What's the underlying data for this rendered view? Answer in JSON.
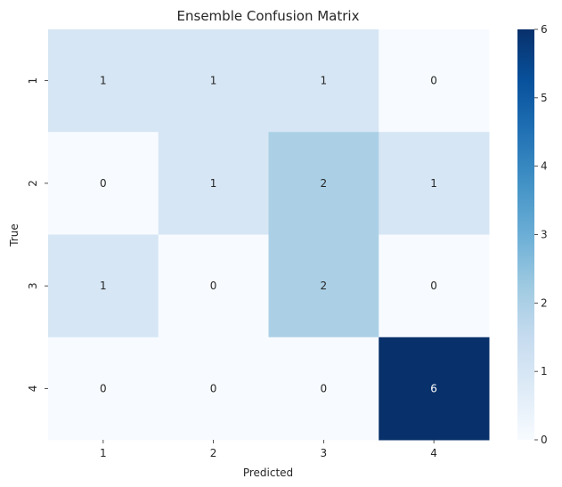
{
  "chart_data": {
    "type": "heatmap",
    "title": "Ensemble Confusion Matrix",
    "xlabel": "Predicted",
    "ylabel": "True",
    "x_categories": [
      "1",
      "2",
      "3",
      "4"
    ],
    "y_categories": [
      "1",
      "2",
      "3",
      "4"
    ],
    "values": [
      [
        1,
        1,
        1,
        0
      ],
      [
        0,
        1,
        2,
        1
      ],
      [
        1,
        0,
        2,
        0
      ],
      [
        0,
        0,
        0,
        6
      ]
    ],
    "colorbar": {
      "min": 0,
      "max": 6,
      "ticks": [
        "0",
        "1",
        "2",
        "3",
        "4",
        "5",
        "6"
      ]
    },
    "colormap": "Blues"
  }
}
